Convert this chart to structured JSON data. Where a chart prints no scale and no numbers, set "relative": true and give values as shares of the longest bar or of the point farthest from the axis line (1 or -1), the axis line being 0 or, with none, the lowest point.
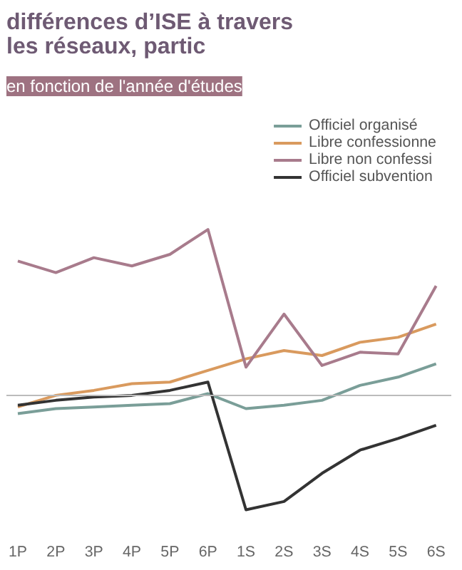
{
  "chart_data": {
    "type": "line",
    "title": "différences d’ISE à travers les réseaux, partic",
    "subtitle": "en fonction de l'année d'études",
    "relative": true,
    "categories": [
      "1P",
      "2P",
      "3P",
      "4P",
      "5P",
      "6P",
      "1S",
      "2S",
      "3S",
      "4S",
      "5S",
      "6S"
    ],
    "series": [
      {
        "name": "Officiel organisé",
        "color": "#7a9e98",
        "values": [
          -0.11,
          -0.08,
          -0.07,
          -0.06,
          -0.05,
          0.01,
          -0.08,
          -0.06,
          -0.03,
          0.06,
          0.11,
          0.19
        ]
      },
      {
        "name": "Libre confessionne",
        "color": "#d99a5e",
        "values": [
          -0.07,
          0,
          0.03,
          0.07,
          0.08,
          0.15,
          0.22,
          0.27,
          0.24,
          0.32,
          0.35,
          0.43
        ]
      },
      {
        "name": "Libre non confessi",
        "color": "#a87b8c",
        "values": [
          0.81,
          0.74,
          0.83,
          0.78,
          0.85,
          1,
          0.17,
          0.49,
          0.18,
          0.26,
          0.25,
          0.66
        ]
      },
      {
        "name": "Officiel subvention",
        "color": "#333333",
        "values": [
          -0.06,
          -0.03,
          -0.01,
          0,
          0.03,
          0.08,
          -0.69,
          -0.64,
          -0.47,
          -0.33,
          -0.26,
          -0.18
        ]
      }
    ],
    "legend": "top right",
    "marker": "none",
    "line_style": "solid",
    "grid": false
  }
}
